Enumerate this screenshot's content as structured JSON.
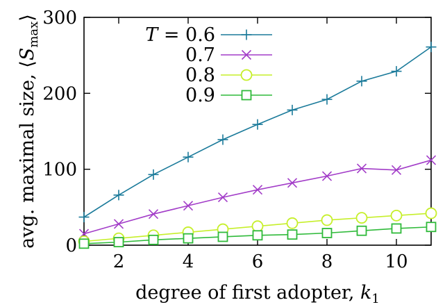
{
  "chart_data": {
    "type": "line",
    "xlabel": "degree of first adopter, k",
    "xlabel_subscript": "1",
    "ylabel": "avg. maximal size, ⟨S",
    "ylabel_subscript": "max",
    "ylabel_close": "⟩",
    "xlim": [
      1,
      11
    ],
    "ylim": [
      0,
      300
    ],
    "xticks": [
      2,
      4,
      6,
      8,
      10
    ],
    "xtick_labels": [
      "2",
      "4",
      "6",
      "8",
      "10"
    ],
    "yticks": [
      0,
      100,
      200,
      300
    ],
    "ytick_labels": [
      "0",
      "100",
      "200",
      "300"
    ],
    "grid": false,
    "legend_position": "top-left",
    "legend_title_prefix": "T = ",
    "x": [
      1,
      2,
      3,
      4,
      5,
      6,
      7,
      8,
      9,
      10,
      11
    ],
    "series": [
      {
        "name": "0.6",
        "color": "#1a7a9a",
        "marker": "plus",
        "values": [
          37,
          66,
          93,
          116,
          139,
          159,
          178,
          192,
          216,
          229,
          261
        ]
      },
      {
        "name": "0.7",
        "color": "#a23cc8",
        "marker": "cross",
        "values": [
          15,
          28,
          41,
          52,
          63,
          73,
          82,
          91,
          101,
          99,
          112
        ]
      },
      {
        "name": "0.8",
        "color": "#c6ef2a",
        "marker": "circle",
        "values": [
          5,
          9,
          13,
          17,
          21,
          25,
          29,
          33,
          36,
          39,
          42
        ]
      },
      {
        "name": "0.9",
        "color": "#2fba3a",
        "marker": "square",
        "values": [
          2,
          4,
          7,
          9,
          11,
          13,
          14,
          16,
          19,
          22,
          24
        ]
      }
    ]
  }
}
